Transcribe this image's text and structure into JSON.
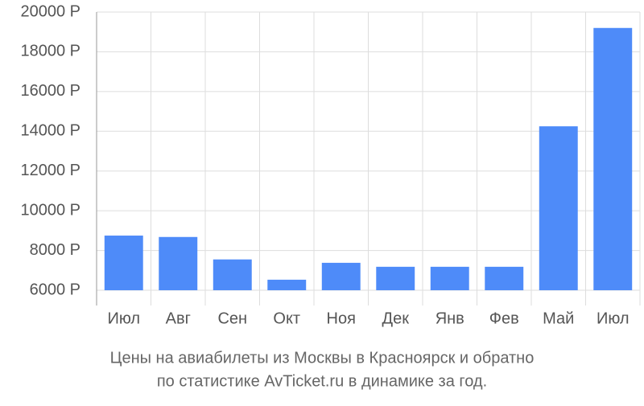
{
  "chart_data": {
    "type": "bar",
    "title": "Цены на авиабилеты из Москвы в Красноярск и обратно",
    "subtitle": "по статистике AvTicket.ru в динамике за год.",
    "categories": [
      "Июл",
      "Авг",
      "Сен",
      "Окт",
      "Ноя",
      "Дек",
      "Янв",
      "Фев",
      "Май",
      "Июл"
    ],
    "values": [
      8750,
      8680,
      7550,
      6530,
      7380,
      7180,
      7180,
      7180,
      14250,
      19200
    ],
    "color": "#4e8bf9",
    "ylim": [
      6000,
      20000
    ],
    "yticks": [
      {
        "value": 6000,
        "label": "6000 Р"
      },
      {
        "value": 8000,
        "label": "8000 Р"
      },
      {
        "value": 10000,
        "label": "10000 Р"
      },
      {
        "value": 12000,
        "label": "12000 Р"
      },
      {
        "value": 14000,
        "label": "14000 Р"
      },
      {
        "value": 16000,
        "label": "16000 Р"
      },
      {
        "value": 18000,
        "label": "18000 Р"
      },
      {
        "value": 20000,
        "label": "20000 Р"
      }
    ],
    "grid": true
  }
}
